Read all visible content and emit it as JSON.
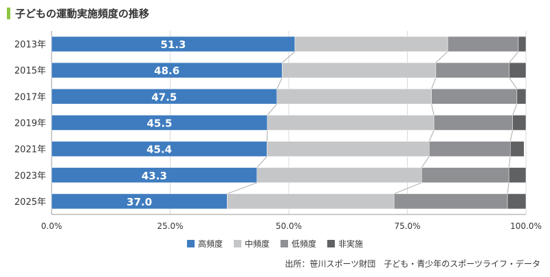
{
  "title": "子どもの運動実施頻度の推移",
  "source": "出所：笹川スポーツ財団　子ども・青少年のスポーツライフ・データ",
  "chart_data": {
    "type": "bar",
    "orientation": "horizontal",
    "stacked": true,
    "categories": [
      "2013年",
      "2015年",
      "2017年",
      "2019年",
      "2021年",
      "2023年",
      "2025年"
    ],
    "series": [
      {
        "name": "高頻度",
        "color": "#3f7cbf",
        "values": [
          51.3,
          48.6,
          47.5,
          45.5,
          45.4,
          43.3,
          37.0
        ],
        "show_labels": true
      },
      {
        "name": "中頻度",
        "color": "#c4c6c8",
        "values": [
          32.2,
          32.4,
          32.6,
          35.1,
          34.2,
          34.7,
          35.2
        ],
        "show_labels": false
      },
      {
        "name": "低頻度",
        "color": "#8e9093",
        "values": [
          14.9,
          15.5,
          18.0,
          16.6,
          17.1,
          18.4,
          23.9
        ],
        "show_labels": false
      },
      {
        "name": "非実施",
        "color": "#5f6163",
        "values": [
          1.6,
          3.5,
          1.9,
          2.8,
          2.9,
          3.6,
          3.9
        ],
        "show_labels": false
      }
    ],
    "x_ticks": [
      "0.0%",
      "25.0%",
      "50.0%",
      "75.0%",
      "100.0%"
    ],
    "x_tick_values": [
      0,
      25,
      50,
      75,
      100
    ],
    "xlim": [
      0,
      100
    ],
    "legend_position": "bottom",
    "connector_lines": true
  }
}
